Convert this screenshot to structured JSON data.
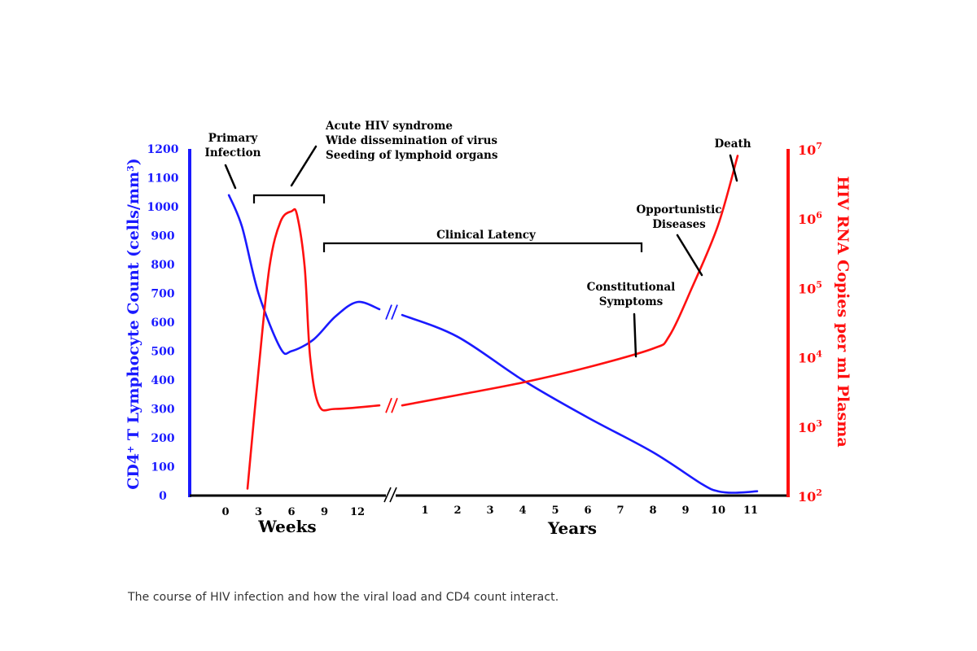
{
  "caption": "The course of HIV infection and how the viral load and CD4 count interact.",
  "colors": {
    "cd4": "#1a1aff",
    "rna": "#ff1010",
    "annotation": "#000000"
  },
  "chart_data": {
    "type": "line",
    "title": "",
    "left_axis": {
      "label_main": "CD4",
      "label_sup": "+",
      "label_rest": " T Lymphocyte Count (cells/mm",
      "label_unit_sup": "3",
      "label_close": ")",
      "ticks": [
        "0",
        "100",
        "200",
        "300",
        "400",
        "500",
        "600",
        "700",
        "800",
        "900",
        "1000",
        "1100",
        "1200"
      ],
      "range": [
        0,
        1200
      ]
    },
    "right_axis": {
      "label": "HIV RNA Copies per ml Plasma",
      "scale": "log",
      "ticks": [
        {
          "base": "10",
          "exp": "2"
        },
        {
          "base": "10",
          "exp": "3"
        },
        {
          "base": "10",
          "exp": "4"
        },
        {
          "base": "10",
          "exp": "5"
        },
        {
          "base": "10",
          "exp": "6"
        },
        {
          "base": "10",
          "exp": "7"
        }
      ],
      "range_exponent": [
        2,
        7
      ]
    },
    "x_axis": {
      "weeks_label": "Weeks",
      "years_label": "Years",
      "week_ticks": [
        "0",
        "3",
        "6",
        "9",
        "12"
      ],
      "year_ticks": [
        "1",
        "2",
        "3",
        "4",
        "5",
        "6",
        "7",
        "8",
        "9",
        "10",
        "11"
      ],
      "axis_break": true
    },
    "series": [
      {
        "name": "CD4",
        "axis": "left",
        "points": [
          {
            "segment": "weeks",
            "x": 0.3,
            "y": 1040
          },
          {
            "segment": "weeks",
            "x": 1.5,
            "y": 930
          },
          {
            "segment": "weeks",
            "x": 3,
            "y": 700
          },
          {
            "segment": "weeks",
            "x": 5,
            "y": 510
          },
          {
            "segment": "weeks",
            "x": 6,
            "y": 500
          },
          {
            "segment": "weeks",
            "x": 8,
            "y": 540
          },
          {
            "segment": "weeks",
            "x": 10,
            "y": 620
          },
          {
            "segment": "weeks",
            "x": 12,
            "y": 670
          },
          {
            "segment": "weeks",
            "x": 14,
            "y": 645
          },
          {
            "segment": "years",
            "x": 0.3,
            "y": 625
          },
          {
            "segment": "years",
            "x": 2,
            "y": 550
          },
          {
            "segment": "years",
            "x": 4,
            "y": 400
          },
          {
            "segment": "years",
            "x": 6,
            "y": 270
          },
          {
            "segment": "years",
            "x": 8,
            "y": 150
          },
          {
            "segment": "years",
            "x": 9.5,
            "y": 40
          },
          {
            "segment": "years",
            "x": 10,
            "y": 15
          },
          {
            "segment": "years",
            "x": 10.5,
            "y": 10
          },
          {
            "segment": "years",
            "x": 11.2,
            "y": 15
          }
        ]
      },
      {
        "name": "HIV RNA",
        "axis": "right",
        "points": [
          {
            "segment": "weeks",
            "x": 2,
            "y": 2.1
          },
          {
            "segment": "weeks",
            "x": 3,
            "y": 3.8
          },
          {
            "segment": "weeks",
            "x": 4,
            "y": 5.3
          },
          {
            "segment": "weeks",
            "x": 5,
            "y": 5.95
          },
          {
            "segment": "weeks",
            "x": 6,
            "y": 6.1
          },
          {
            "segment": "weeks",
            "x": 6.5,
            "y": 6.05
          },
          {
            "segment": "weeks",
            "x": 7.2,
            "y": 5.3
          },
          {
            "segment": "weeks",
            "x": 7.7,
            "y": 4.0
          },
          {
            "segment": "weeks",
            "x": 8.5,
            "y": 3.3
          },
          {
            "segment": "weeks",
            "x": 10,
            "y": 3.25
          },
          {
            "segment": "weeks",
            "x": 14,
            "y": 3.3
          },
          {
            "segment": "years",
            "x": 0.3,
            "y": 3.3
          },
          {
            "segment": "years",
            "x": 2,
            "y": 3.45
          },
          {
            "segment": "years",
            "x": 4,
            "y": 3.63
          },
          {
            "segment": "years",
            "x": 6,
            "y": 3.85
          },
          {
            "segment": "years",
            "x": 8,
            "y": 4.12
          },
          {
            "segment": "years",
            "x": 8.5,
            "y": 4.3
          },
          {
            "segment": "years",
            "x": 9.2,
            "y": 5.0
          },
          {
            "segment": "years",
            "x": 10,
            "y": 5.9
          },
          {
            "segment": "years",
            "x": 10.6,
            "y": 6.9
          }
        ]
      }
    ],
    "annotations": {
      "primary_infection": [
        "Primary",
        "Infection"
      ],
      "acute": [
        "Acute HIV syndrome",
        "Wide dissemination of virus",
        "Seeding of lymphoid organs"
      ],
      "clinical_latency": "Clinical Latency",
      "opportunistic": [
        "Opportunistic",
        "Diseases"
      ],
      "constitutional": [
        "Constitutional",
        "Symptoms"
      ],
      "death": "Death"
    }
  }
}
